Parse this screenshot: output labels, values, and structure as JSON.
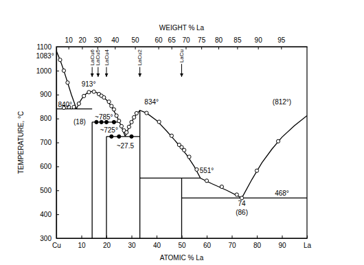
{
  "chart_data": {
    "type": "phase_diagram",
    "color": "#000000",
    "grid": false,
    "xlabel": "ATOMIC % La",
    "x2label": "WEIGHT % La",
    "ylabel": "TEMPERATURE, °C",
    "xlim": [
      0,
      100
    ],
    "x2lim": [
      0,
      100
    ],
    "ylim": [
      300,
      1100
    ],
    "xticks": [
      {
        "value": 0,
        "label": "Cu"
      },
      10,
      20,
      30,
      40,
      50,
      60,
      70,
      80,
      90,
      {
        "value": 100,
        "label": "La"
      }
    ],
    "x2ticks": [
      {
        "value": 4.84,
        "label": "10"
      },
      {
        "value": 10.26,
        "label": "20"
      },
      {
        "value": 16.39,
        "label": "30"
      },
      {
        "value": 23.37,
        "label": "40"
      },
      {
        "value": 31.39,
        "label": "50"
      },
      {
        "value": 40.7,
        "label": "60"
      },
      {
        "value": 45.93,
        "label": "65"
      },
      {
        "value": 51.63,
        "label": "70"
      },
      {
        "value": 57.85,
        "label": "75"
      },
      {
        "value": 64.66,
        "label": "80"
      },
      {
        "value": 72.16,
        "label": "85"
      },
      {
        "value": 80.46,
        "label": "90"
      },
      {
        "value": 89.68,
        "label": "95"
      }
    ],
    "yticks": [
      300,
      400,
      500,
      600,
      700,
      800,
      900,
      1000,
      1100
    ],
    "series": [
      {
        "type": "line",
        "x": [
          0,
          1.5,
          3,
          4.5,
          6,
          7.2,
          8
        ],
        "values": [
          1083,
          1045,
          1000,
          950,
          900,
          865,
          840
        ]
      },
      {
        "type": "line",
        "x": [
          0,
          14.29
        ],
        "values": [
          840,
          840
        ]
      },
      {
        "type": "line",
        "x": [
          8,
          9,
          10,
          11,
          12,
          13,
          14.29,
          16,
          18,
          20,
          22,
          24,
          25.2,
          26,
          27.5
        ],
        "values": [
          840,
          862,
          880,
          894,
          904,
          910,
          913,
          909,
          895,
          878,
          850,
          812,
          785,
          765,
          725
        ]
      },
      {
        "type": "line",
        "x": [
          14.29,
          25.2
        ],
        "values": [
          785,
          785
        ]
      },
      {
        "type": "line",
        "x": [
          20,
          33.33
        ],
        "values": [
          725,
          725
        ]
      },
      {
        "type": "line",
        "x": [
          27.5,
          29,
          31,
          33.33,
          36,
          40,
          44,
          48,
          52,
          55,
          57.5,
          62,
          68,
          74
        ],
        "values": [
          725,
          765,
          805,
          834,
          823,
          792,
          748,
          700,
          648,
          600,
          551,
          528,
          500,
          468
        ]
      },
      {
        "type": "line",
        "x": [
          33.33,
          57.5
        ],
        "values": [
          551,
          551
        ]
      },
      {
        "type": "line",
        "x": [
          74,
          78,
          82,
          86,
          90,
          95,
          100
        ],
        "values": [
          468,
          545,
          615,
          672,
          722,
          770,
          812
        ]
      },
      {
        "type": "line",
        "x": [
          50,
          100
        ],
        "values": [
          468,
          468
        ]
      },
      {
        "type": "line",
        "x": [
          14.29,
          14.29
        ],
        "values": [
          785,
          300
        ]
      },
      {
        "type": "line",
        "x": [
          20,
          20
        ],
        "values": [
          725,
          300
        ]
      },
      {
        "type": "line",
        "x": [
          33.33,
          33.33
        ],
        "values": [
          834,
          300
        ]
      },
      {
        "type": "line",
        "x": [
          50,
          50
        ],
        "values": [
          551,
          300
        ]
      },
      {
        "type": "scatter",
        "marker": "open-circle",
        "x": [
          1.5,
          3,
          4.5,
          3,
          5,
          7,
          9,
          11,
          13,
          15,
          17,
          18,
          19,
          21,
          22,
          23,
          24,
          25,
          26,
          27,
          28,
          29,
          30,
          31,
          32,
          36,
          41,
          46,
          49,
          50,
          51,
          53,
          56,
          60,
          66,
          72,
          74,
          80,
          88.5
        ],
        "values": [
          1045,
          1000,
          950,
          845,
          848,
          848,
          862,
          894,
          910,
          912,
          902,
          895,
          888,
          870,
          852,
          838,
          812,
          790,
          768,
          750,
          742,
          765,
          785,
          805,
          822,
          823,
          786,
          728,
          690,
          680,
          668,
          640,
          587,
          540,
          515,
          482,
          468,
          582,
          705
        ]
      },
      {
        "type": "scatter",
        "marker": "filled-circle",
        "x": [
          16,
          18,
          20,
          23,
          22,
          25,
          30
        ],
        "values": [
          785,
          785,
          785,
          785,
          725,
          725,
          725
        ]
      }
    ],
    "compounds": [
      {
        "label": "LaCu6",
        "x": 14.29
      },
      {
        "label": "LaCu5",
        "x": 16.67
      },
      {
        "label": "LaCu4",
        "x": 20
      },
      {
        "label": "LaCu2",
        "x": 33.33
      },
      {
        "label": "LaCu",
        "x": 50
      }
    ],
    "annotations": [
      {
        "text": "1083°",
        "x": -4.5,
        "y": 1062
      },
      {
        "text": "840°",
        "x": 3.5,
        "y": 858
      },
      {
        "text": "913°",
        "x": 12.9,
        "y": 945
      },
      {
        "text": "(18)",
        "x": 9.3,
        "y": 785
      },
      {
        "text": "~785°",
        "x": 19,
        "y": 805
      },
      {
        "text": "~725°",
        "x": 21,
        "y": 752
      },
      {
        "text": "~27.5",
        "x": 27.5,
        "y": 685
      },
      {
        "text": "834°",
        "x": 38,
        "y": 868
      },
      {
        "text": "551°",
        "x": 60,
        "y": 582
      },
      {
        "text": "(812°)",
        "x": 90,
        "y": 870
      },
      {
        "text": "74",
        "x": 74,
        "y": 445
      },
      {
        "text": "(86)",
        "x": 74,
        "y": 408
      },
      {
        "text": "468°",
        "x": 90,
        "y": 487
      }
    ]
  }
}
